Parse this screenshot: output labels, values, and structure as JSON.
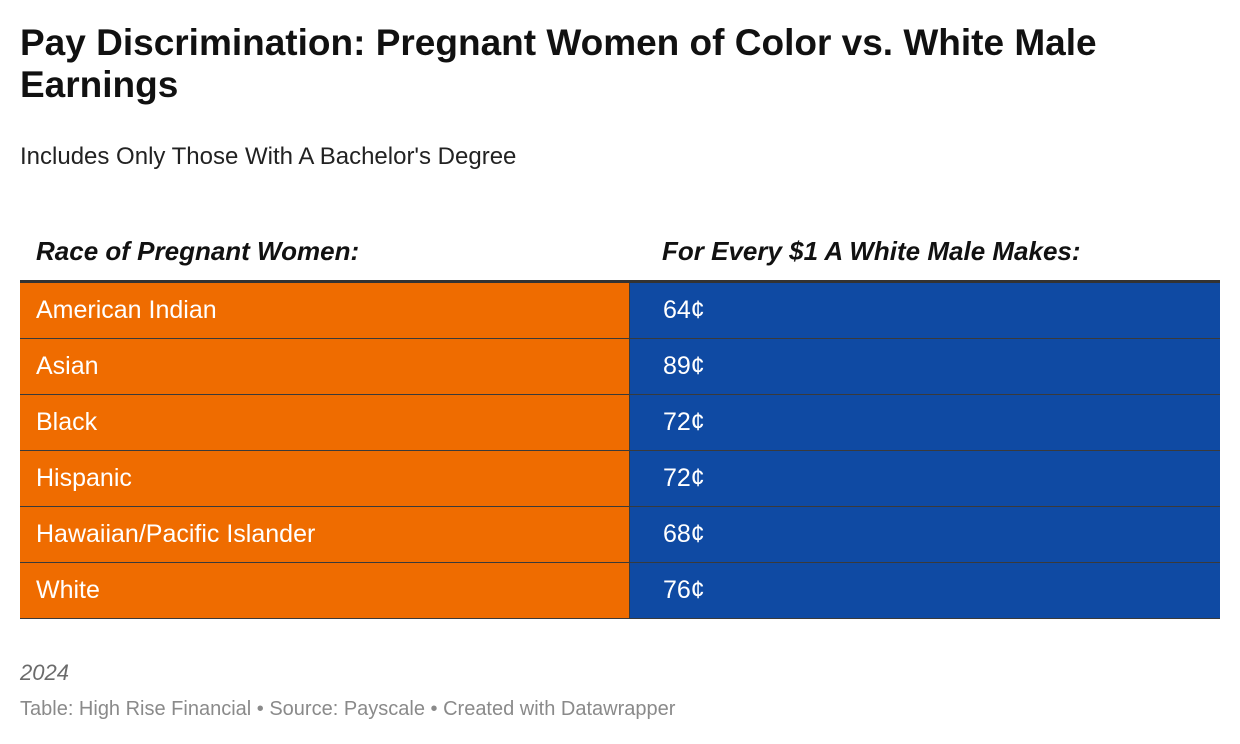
{
  "chart_data": {
    "type": "table",
    "title": "Pay Discrimination: Pregnant Women of Color vs. White Male Earnings",
    "subtitle": "Includes Only Those With A Bachelor's Degree",
    "columns": [
      "Race of Pregnant Women:",
      "For Every $1 A White Male Makes:"
    ],
    "rows": [
      {
        "race": "American Indian",
        "value": "64¢"
      },
      {
        "race": "Asian",
        "value": "89¢"
      },
      {
        "race": "Black",
        "value": "72¢"
      },
      {
        "race": "Hispanic",
        "value": "72¢"
      },
      {
        "race": "Hawaiian/Pacific Islander",
        "value": "68¢"
      },
      {
        "race": "White",
        "value": "76¢"
      }
    ],
    "colors": {
      "first_column": "#ef6c00",
      "second_column": "#0f4aa3"
    }
  },
  "footer": {
    "year": "2024",
    "credit": "Table: High Rise Financial • Source: Payscale • Created with Datawrapper"
  }
}
